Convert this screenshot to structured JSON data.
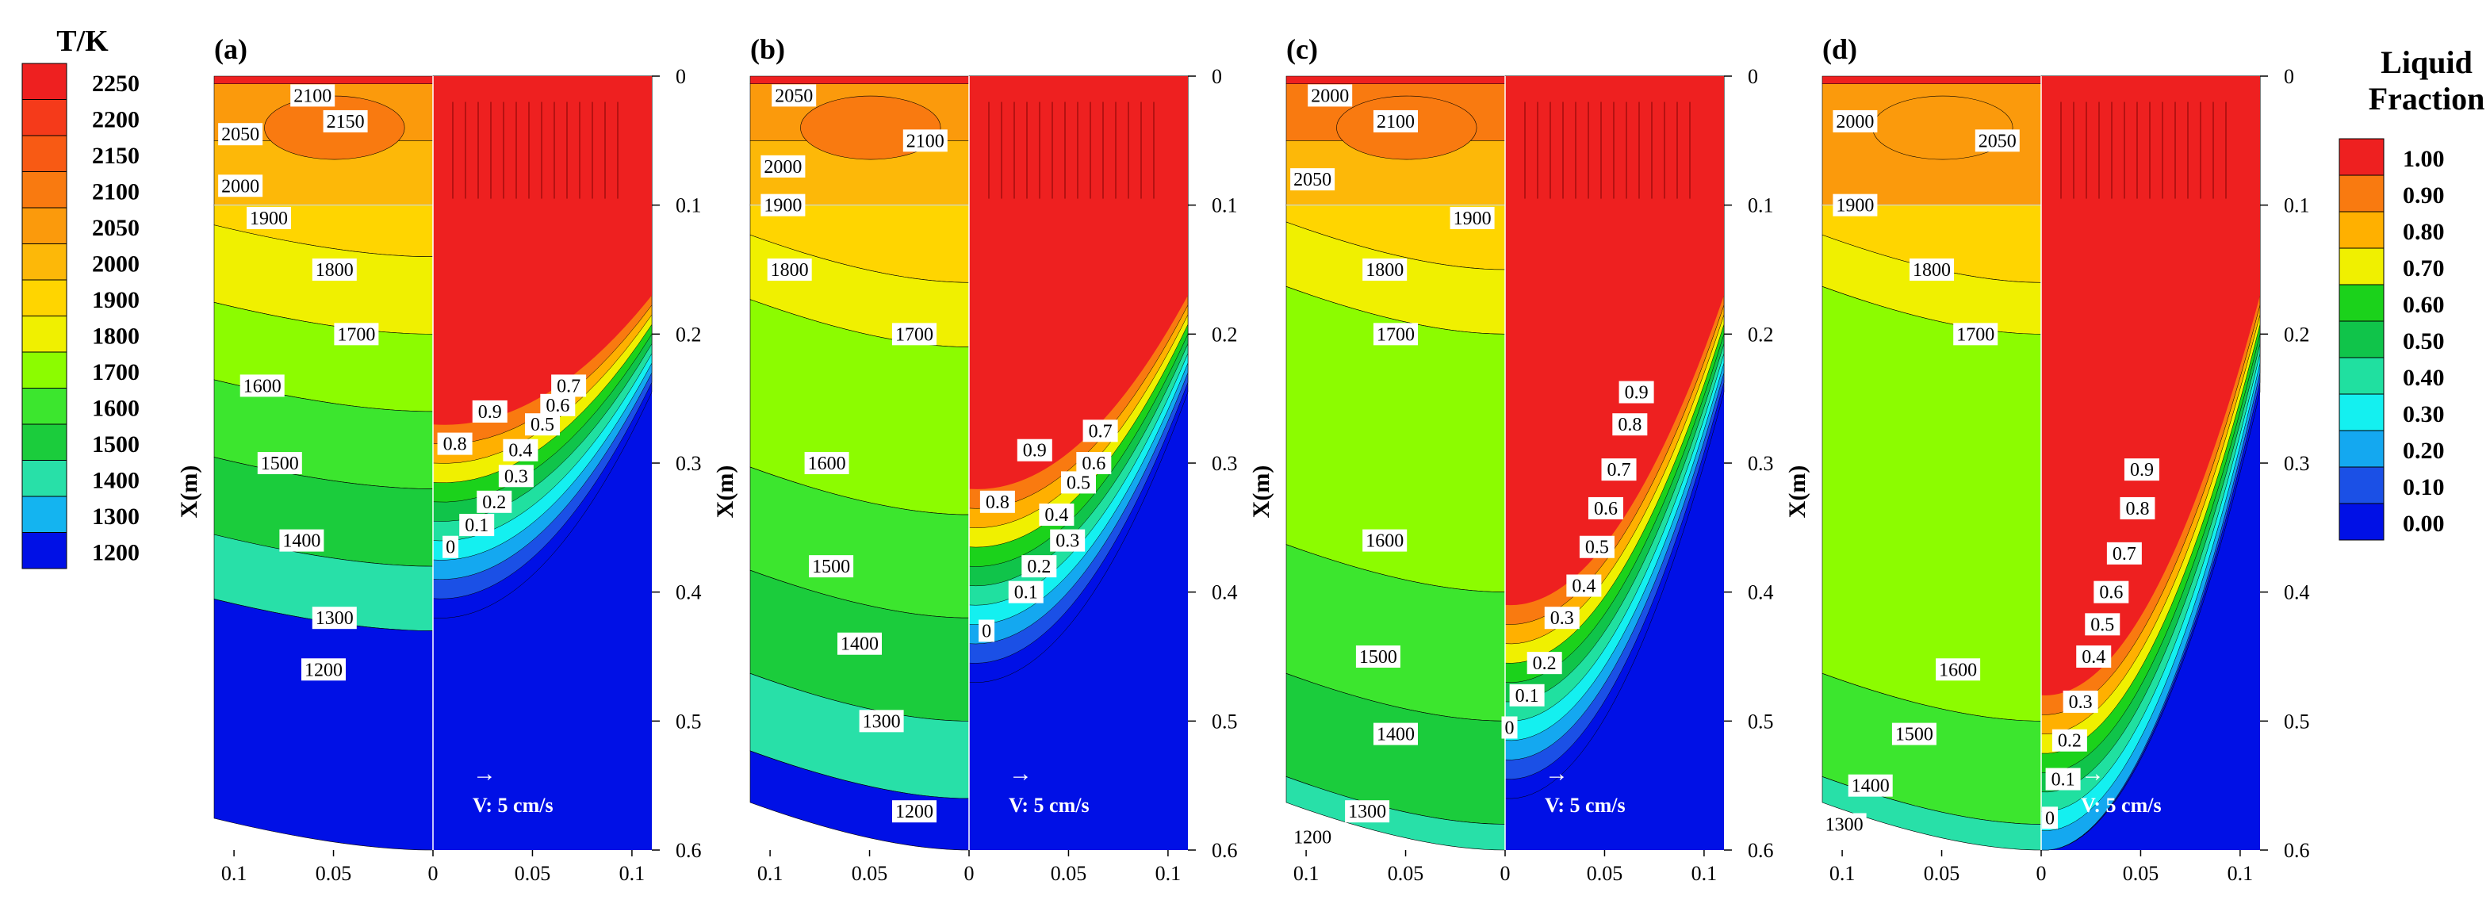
{
  "chart_data": {
    "type": "heatmap",
    "description_panels": [
      "(a)",
      "(b)",
      "(c)",
      "(d)"
    ],
    "temperature_legend": {
      "title": "T/K",
      "levels": [
        2250,
        2200,
        2150,
        2100,
        2050,
        2000,
        1900,
        1800,
        1700,
        1600,
        1500,
        1400,
        1300,
        1200
      ],
      "colors": [
        "#ee2020",
        "#f53a1a",
        "#f85a14",
        "#f97a10",
        "#fb9a0c",
        "#fdb808",
        "#ffd500",
        "#f0f000",
        "#8cfc00",
        "#3ce62e",
        "#1bcc3c",
        "#28e0a8",
        "#14b4f0",
        "#0010e6"
      ]
    },
    "liquid_fraction_legend": {
      "title_line1": "Liquid",
      "title_line2": "Fraction",
      "levels": [
        "1.00",
        "0.90",
        "0.80",
        "0.70",
        "0.60",
        "0.50",
        "0.40",
        "0.30",
        "0.20",
        "0.10",
        "0.00"
      ],
      "colors": [
        "#ee2020",
        "#f97a10",
        "#ffb000",
        "#f0f000",
        "#1bd21b",
        "#10c44a",
        "#20e0a0",
        "#14f0f0",
        "#14a8f0",
        "#1b50e6",
        "#0010e6"
      ]
    },
    "y_axis": {
      "label": "X(m)",
      "ticks": [
        "0",
        "0.1",
        "0.2",
        "0.3",
        "0.4",
        "0.5",
        "0.6"
      ],
      "range": [
        0,
        0.6
      ]
    },
    "x_axis": {
      "ticks": [
        "0.1",
        "0.05",
        "0",
        "0.05",
        "0.1"
      ],
      "range": [
        -0.11,
        0.11
      ]
    },
    "velocity_reference": {
      "arrow": "→",
      "text": "V: 5 cm/s"
    },
    "panels": [
      {
        "id": "(a)",
        "depth_1200": 0.48,
        "liquid_front_center": 0.37,
        "temperature_labels": [
          "2100",
          "2150",
          "2050",
          "2000",
          "1900",
          "1800",
          "1700",
          "1600",
          "1500",
          "1400",
          "1300",
          "1200"
        ],
        "fraction_labels": [
          "0.7",
          "0.6",
          "0.9",
          "0.5",
          "0.8",
          "0.4",
          "0.3",
          "0.2",
          "0.1",
          "0"
        ]
      },
      {
        "id": "(b)",
        "depth_1200": 0.58,
        "liquid_front_center": 0.42,
        "temperature_labels": [
          "2050",
          "2100",
          "2000",
          "1900",
          "1800",
          "1700",
          "1600",
          "1500",
          "1400",
          "1300",
          "1200"
        ],
        "fraction_labels": [
          "0.7",
          "0.9",
          "0.6",
          "0.5",
          "0.8",
          "0.4",
          "0.3",
          "0.2",
          "0.1",
          "0"
        ]
      },
      {
        "id": "(c)",
        "depth_1200": 0.6,
        "liquid_front_center": 0.51,
        "temperature_labels": [
          "2000",
          "2100",
          "2050",
          "1900",
          "1800",
          "1700",
          "1600",
          "1500",
          "1400",
          "1300",
          "1200"
        ],
        "fraction_labels": [
          "0.9",
          "0.8",
          "0.7",
          "0.6",
          "0.5",
          "0.4",
          "0.3",
          "0.2",
          "0.1",
          "0"
        ]
      },
      {
        "id": "(d)",
        "depth_1200": 0.6,
        "liquid_front_center": 0.58,
        "temperature_labels": [
          "2000",
          "2050",
          "1900",
          "1800",
          "1700",
          "1600",
          "1500",
          "1400",
          "1300"
        ],
        "fraction_labels": [
          "0.9",
          "0.8",
          "0.7",
          "0.6",
          "0.5",
          "0.4",
          "0.3",
          "0.2",
          "0.1",
          "0"
        ]
      }
    ]
  }
}
